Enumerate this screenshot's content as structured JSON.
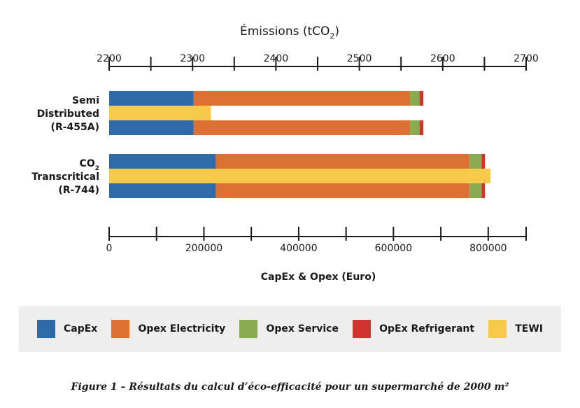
{
  "chart_data": {
    "type": "bar",
    "orientation": "horizontal",
    "stacked": true,
    "categories": [
      {
        "lines": [
          "Semi",
          "Distributed",
          "(R-455A)"
        ],
        "subscript": ""
      },
      {
        "lines": [
          "CO",
          "Transcritical",
          "(R-744)"
        ],
        "subscript": "2"
      }
    ],
    "series": [
      {
        "name": "CapEx",
        "axis": "bottom",
        "color": "#2e6aa8",
        "values": [
          178000,
          225000
        ]
      },
      {
        "name": "Opex Electricity",
        "axis": "bottom",
        "color": "#dd7134",
        "values": [
          457000,
          535000
        ]
      },
      {
        "name": "Opex Service",
        "axis": "bottom",
        "color": "#87ab4e",
        "values": [
          20000,
          26000
        ]
      },
      {
        "name": "OpEx Refrigerant",
        "axis": "bottom",
        "color": "#d0342e",
        "values": [
          8000,
          7000
        ]
      },
      {
        "name": "TEWI",
        "axis": "top",
        "color": "#f6c94a",
        "values": [
          2322,
          2657
        ]
      }
    ],
    "top_axis": {
      "title_main": "Émissions (tCO",
      "title_sub": "2",
      "title_end": ")",
      "range": [
        2200,
        2700
      ],
      "ticks": [
        "2200",
        "2300",
        "2400",
        "2500",
        "2600",
        "2700"
      ],
      "minor_step": 50
    },
    "bottom_axis": {
      "title": "CapEx & Opex (Euro)",
      "range": [
        0,
        880000
      ],
      "ticks": [
        "0",
        "200000",
        "400000",
        "600000",
        "800000"
      ],
      "minor_step": 100000
    },
    "legend": [
      {
        "name": "CapEx",
        "color": "#2e6aa8"
      },
      {
        "name": "Opex Electricity",
        "color": "#dd7134"
      },
      {
        "name": "Opex Service",
        "color": "#87ab4e"
      },
      {
        "name": "OpEx Refrigerant",
        "color": "#d0342e"
      },
      {
        "name": "TEWI",
        "color": "#f6c94a"
      }
    ]
  },
  "caption": "Figure 1 – Résultats du calcul d’éco-efficacité pour un supermarché de 2000 m²"
}
